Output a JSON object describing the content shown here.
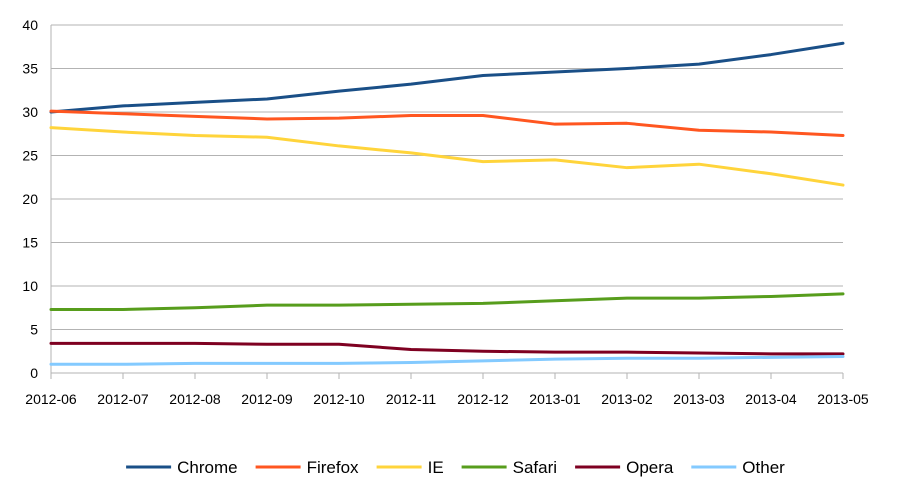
{
  "chart_data": {
    "type": "line",
    "title": "",
    "xlabel": "",
    "ylabel": "",
    "x": [
      "2012-06",
      "2012-07",
      "2012-08",
      "2012-09",
      "2012-10",
      "2012-11",
      "2012-12",
      "2013-01",
      "2013-02",
      "2013-03",
      "2013-04",
      "2013-05"
    ],
    "ylim": [
      0,
      40
    ],
    "yticks": [
      0,
      5,
      10,
      15,
      20,
      25,
      30,
      35,
      40
    ],
    "grid": true,
    "legend_position": "bottom",
    "series": [
      {
        "name": "Chrome",
        "color": "#1a4f87",
        "values": [
          30.0,
          30.7,
          31.1,
          31.5,
          32.4,
          33.2,
          34.2,
          34.6,
          35.0,
          35.5,
          36.6,
          37.9
        ]
      },
      {
        "name": "Firefox",
        "color": "#ff5620",
        "values": [
          30.1,
          29.8,
          29.5,
          29.2,
          29.3,
          29.6,
          29.6,
          28.6,
          28.7,
          27.9,
          27.7,
          27.3
        ]
      },
      {
        "name": "IE",
        "color": "#ffd43b",
        "values": [
          28.2,
          27.7,
          27.3,
          27.1,
          26.1,
          25.3,
          24.3,
          24.5,
          23.6,
          24.0,
          22.9,
          21.6
        ]
      },
      {
        "name": "Safari",
        "color": "#579d1c",
        "values": [
          7.3,
          7.3,
          7.5,
          7.8,
          7.8,
          7.9,
          8.0,
          8.3,
          8.6,
          8.6,
          8.8,
          9.1
        ]
      },
      {
        "name": "Opera",
        "color": "#7e0021",
        "values": [
          3.4,
          3.4,
          3.4,
          3.3,
          3.3,
          2.7,
          2.5,
          2.4,
          2.4,
          2.3,
          2.2,
          2.2
        ]
      },
      {
        "name": "Other",
        "color": "#83caff",
        "values": [
          1.0,
          1.0,
          1.1,
          1.1,
          1.1,
          1.2,
          1.4,
          1.6,
          1.7,
          1.7,
          1.8,
          1.9
        ]
      }
    ]
  }
}
